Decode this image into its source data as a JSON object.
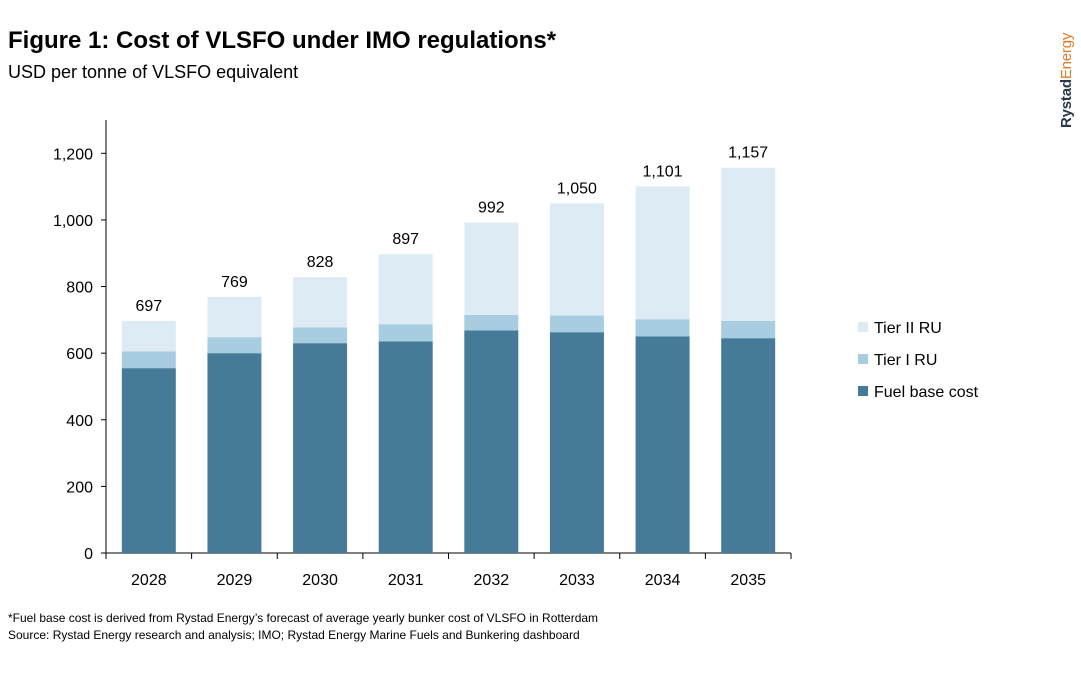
{
  "header": {
    "title": "Figure 1: Cost of VLSFO under IMO regulations*",
    "subtitle": "USD per tonne of VLSFO equivalent"
  },
  "brand": {
    "part1": "Rystad",
    "part2": "Energy"
  },
  "footnotes": {
    "note": "*Fuel base cost is derived from Rystad Energy’s forecast of average yearly bunker cost of VLSFO in Rotterdam",
    "source": "Source: Rystad Energy research and analysis; IMO; Rystad Energy Marine Fuels and Bunkering dashboard"
  },
  "chart_data": {
    "type": "bar",
    "stacked": true,
    "categories": [
      "2028",
      "2029",
      "2030",
      "2031",
      "2032",
      "2033",
      "2034",
      "2035"
    ],
    "series": [
      {
        "name": "Fuel base cost",
        "color": "#457b99",
        "values": [
          555,
          600,
          630,
          635,
          668,
          663,
          650,
          645
        ]
      },
      {
        "name": "Tier I RU",
        "color": "#a8cde0",
        "values": [
          50,
          48,
          47,
          52,
          47,
          50,
          52,
          52
        ]
      },
      {
        "name": "Tier II RU",
        "color": "#ddebf4",
        "values": [
          92,
          121,
          151,
          210,
          277,
          337,
          399,
          460
        ]
      }
    ],
    "totals": [
      697,
      769,
      828,
      897,
      992,
      1050,
      1101,
      1157
    ],
    "total_labels": [
      "697",
      "769",
      "828",
      "897",
      "992",
      "1,050",
      "1,101",
      "1,157"
    ],
    "ylim": [
      0,
      1300
    ],
    "yticks": [
      0,
      200,
      400,
      600,
      800,
      1000,
      1200
    ],
    "ytick_labels": [
      "0",
      "200",
      "400",
      "600",
      "800",
      "1,000",
      "1,200"
    ],
    "legend_position": "right",
    "legend_order": [
      "Tier II RU",
      "Tier I RU",
      "Fuel base cost"
    ],
    "grid": false
  }
}
